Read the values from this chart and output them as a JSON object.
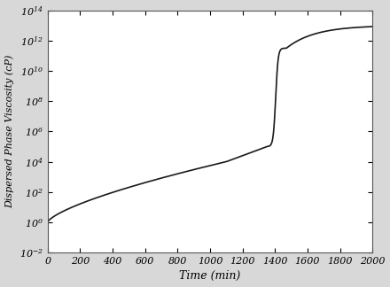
{
  "xlabel": "Time (min)",
  "ylabel": "Dispersed Phase Viscosity (cP)",
  "xlim": [
    0,
    2000
  ],
  "ylim_log": [
    -2,
    14
  ],
  "xticks": [
    0,
    200,
    400,
    600,
    800,
    1000,
    1200,
    1400,
    1600,
    1800,
    2000
  ],
  "ytick_powers": [
    -2,
    0,
    2,
    4,
    6,
    8,
    10,
    12,
    14
  ],
  "line_color": "#1a1a1a",
  "line_width": 1.2,
  "background_color": "#d8d8d8",
  "axes_facecolor": "#ffffff",
  "xlabel_fontsize": 9,
  "ylabel_fontsize": 8,
  "tick_fontsize": 8,
  "phase1_end_t": 1100,
  "phase1_end_log": 4.0,
  "gel_start_t": 1350,
  "gel_start_log": 5.0,
  "gel_end_t": 1470,
  "gel_end_log": 11.5,
  "final_t": 2000,
  "final_log": 13.0
}
